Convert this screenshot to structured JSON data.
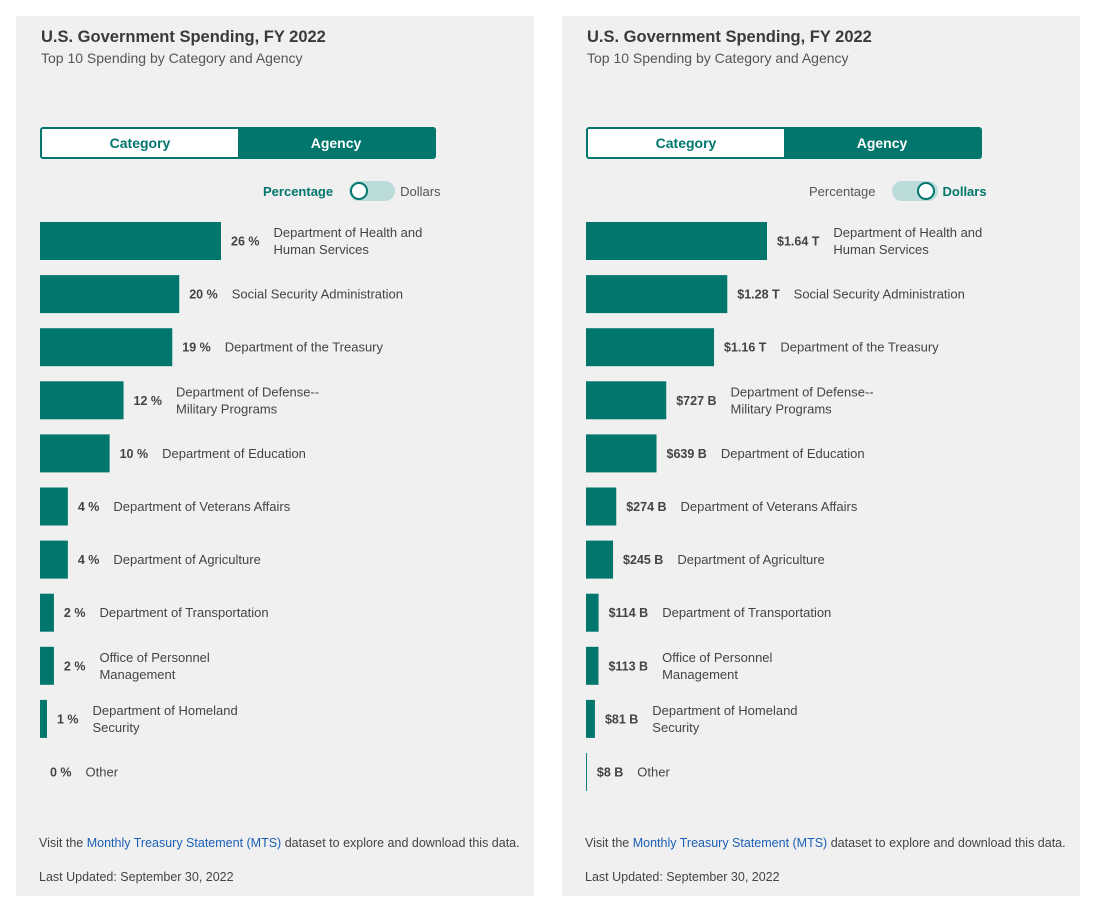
{
  "colors": {
    "bar": "#00766c",
    "accent": "#00766c",
    "link": "#1a5fb4"
  },
  "panels": [
    {
      "title": "U.S. Government Spending, FY 2022",
      "subtitle": "Top 10 Spending by Category and Agency",
      "tabs": {
        "category": "Category",
        "agency": "Agency",
        "selected": "agency"
      },
      "toggle": {
        "left_label": "Percentage",
        "right_label": "Dollars",
        "mode": "percentage"
      },
      "footer": {
        "prefix": "Visit the ",
        "link": "Monthly Treasury Statement (MTS)",
        "suffix": " dataset to explore and download this data."
      },
      "updated": "Last Updated: September 30, 2022"
    },
    {
      "title": "U.S. Government Spending, FY 2022",
      "subtitle": "Top 10 Spending by Category and Agency",
      "tabs": {
        "category": "Category",
        "agency": "Agency",
        "selected": "agency"
      },
      "toggle": {
        "left_label": "Percentage",
        "right_label": "Dollars",
        "mode": "dollars"
      },
      "footer": {
        "prefix": "Visit the ",
        "link": "Monthly Treasury Statement (MTS)",
        "suffix": " dataset to explore and download this data."
      },
      "updated": "Last Updated: September 30, 2022"
    }
  ],
  "chart_data": [
    {
      "type": "bar",
      "orientation": "horizontal",
      "title": "U.S. Government Spending, FY 2022",
      "subtitle": "Top 10 Spending by Category and Agency",
      "unit": "percent",
      "categories": [
        [
          "Department of Health and",
          "Human Services"
        ],
        [
          "Social Security Administration"
        ],
        [
          "Department of the Treasury"
        ],
        [
          "Department of Defense--",
          "Military Programs"
        ],
        [
          "Department of Education"
        ],
        [
          "Department of Veterans Affairs"
        ],
        [
          "Department of Agriculture"
        ],
        [
          "Department of Transportation"
        ],
        [
          "Office of Personnel",
          "Management"
        ],
        [
          "Department of Homeland",
          "Security"
        ],
        [
          "Other"
        ]
      ],
      "values": [
        26,
        20,
        19,
        12,
        10,
        4,
        4,
        2,
        2,
        1,
        0
      ],
      "value_labels": [
        "26 %",
        "20 %",
        "19 %",
        "12 %",
        "10 %",
        "4 %",
        "4 %",
        "2 %",
        "2 %",
        "1 %",
        "0 %"
      ]
    },
    {
      "type": "bar",
      "orientation": "horizontal",
      "title": "U.S. Government Spending, FY 2022",
      "subtitle": "Top 10 Spending by Category and Agency",
      "unit": "USD billions",
      "categories": [
        [
          "Department of Health and",
          "Human Services"
        ],
        [
          "Social Security Administration"
        ],
        [
          "Department of the Treasury"
        ],
        [
          "Department of Defense--",
          "Military Programs"
        ],
        [
          "Department of Education"
        ],
        [
          "Department of Veterans Affairs"
        ],
        [
          "Department of Agriculture"
        ],
        [
          "Department of Transportation"
        ],
        [
          "Office of Personnel",
          "Management"
        ],
        [
          "Department of Homeland",
          "Security"
        ],
        [
          "Other"
        ]
      ],
      "values": [
        1640,
        1280,
        1160,
        727,
        639,
        274,
        245,
        114,
        113,
        81,
        8
      ],
      "value_labels": [
        "$1.64 T",
        "$1.28 T",
        "$1.16 T",
        "$727 B",
        "$639 B",
        "$274 B",
        "$245 B",
        "$114 B",
        "$113 B",
        "$81 B",
        "$8 B"
      ]
    }
  ]
}
